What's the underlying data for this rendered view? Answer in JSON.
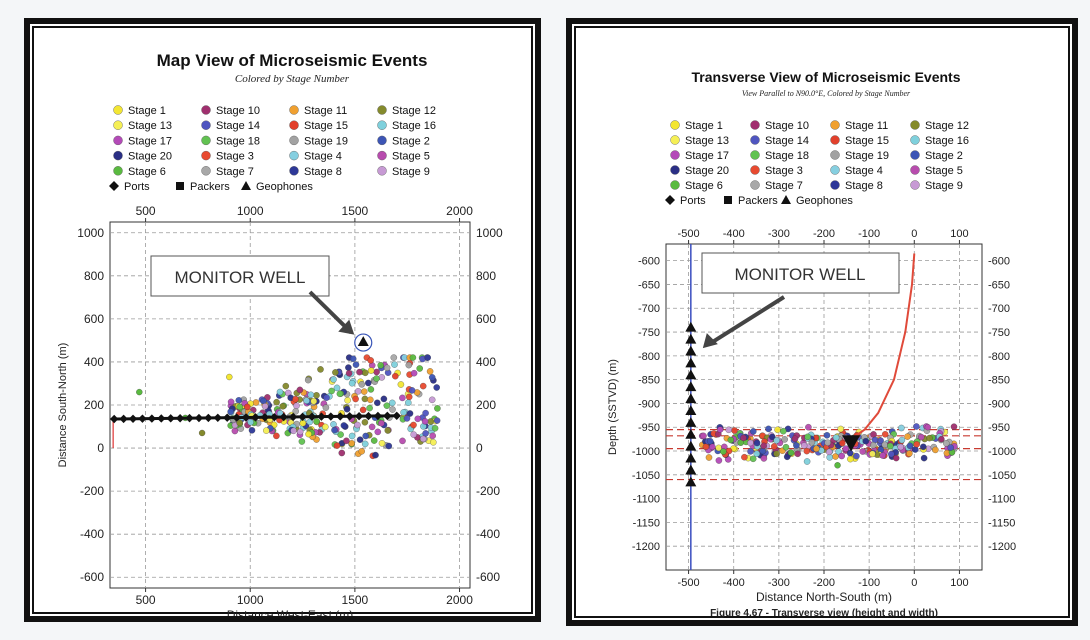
{
  "chart_data": [
    {
      "type": "scatter",
      "title": "Map View of Microseismic Events",
      "subtitle": "Colored by Stage Number",
      "xlabel": "Distance West-East (m)",
      "ylabel": "Distance South-North (m)",
      "xlim": [
        330,
        2050
      ],
      "ylim": [
        -650,
        1050
      ],
      "xticks": [
        500,
        1000,
        1500,
        2000
      ],
      "yticks": [
        1000,
        800,
        600,
        400,
        200,
        0,
        -200,
        -400,
        -600
      ],
      "grid": true,
      "legend_position": "top",
      "legend": [
        {
          "label": "Stage 1",
          "color": "#f3e633"
        },
        {
          "label": "Stage 10",
          "color": "#a0306f"
        },
        {
          "label": "Stage 11",
          "color": "#f0a030"
        },
        {
          "label": "Stage 12",
          "color": "#848a2c"
        },
        {
          "label": "Stage 13",
          "color": "#f5ef55"
        },
        {
          "label": "Stage 14",
          "color": "#4f55c0"
        },
        {
          "label": "Stage 15",
          "color": "#e2402c"
        },
        {
          "label": "Stage 16",
          "color": "#7fd0dc"
        },
        {
          "label": "Stage 17",
          "color": "#b44ab8"
        },
        {
          "label": "Stage 18",
          "color": "#62c252"
        },
        {
          "label": "Stage 19",
          "color": "#a2a2a2"
        },
        {
          "label": "Stage 2",
          "color": "#3d55b5"
        },
        {
          "label": "Stage 20",
          "color": "#2a2f85"
        },
        {
          "label": "Stage 3",
          "color": "#e84a30"
        },
        {
          "label": "Stage 4",
          "color": "#86cfe0"
        },
        {
          "label": "Stage 5",
          "color": "#b84cae"
        },
        {
          "label": "Stage 6",
          "color": "#5aba40"
        },
        {
          "label": "Stage 7",
          "color": "#a8a8a8"
        },
        {
          "label": "Stage 8",
          "color": "#2e3898"
        },
        {
          "label": "Stage 9",
          "color": "#c79ad4"
        }
      ],
      "symbols": [
        {
          "label": "Ports",
          "marker": "diamond"
        },
        {
          "label": "Packers",
          "marker": "square"
        },
        {
          "label": "Geophones",
          "marker": "triangle"
        }
      ],
      "annotation": "MONITOR WELL",
      "geophone": {
        "x": 1540,
        "y": 490
      },
      "event_cloud": {
        "x_range": [
          900,
          1900
        ],
        "y_range": [
          -80,
          420
        ],
        "count": 340
      },
      "wellbore": {
        "x_range": [
          350,
          1700
        ],
        "y": 135
      }
    },
    {
      "type": "scatter",
      "title": "Transverse View of Microseismic Events",
      "subtitle": "View Parallel to N90.0°E, Colored by Stage Number",
      "xlabel": "Distance North-South (m)",
      "ylabel": "Depth (SSTVD) (m)",
      "caption": "Figure 4.67 - Transverse view (height and width)",
      "xlim": [
        -550,
        150
      ],
      "ylim": [
        -1250,
        -565
      ],
      "xticks": [
        -500,
        -400,
        -300,
        -200,
        -100,
        0,
        100
      ],
      "yticks": [
        -600,
        -650,
        -700,
        -750,
        -800,
        -850,
        -900,
        -950,
        -1000,
        -1050,
        -1100,
        -1150,
        -1200
      ],
      "grid": true,
      "legend_position": "top",
      "legend": [
        {
          "label": "Stage 1",
          "color": "#f3e633"
        },
        {
          "label": "Stage 10",
          "color": "#a0306f"
        },
        {
          "label": "Stage 11",
          "color": "#f0a030"
        },
        {
          "label": "Stage 12",
          "color": "#848a2c"
        },
        {
          "label": "Stage 13",
          "color": "#f5ef55"
        },
        {
          "label": "Stage 14",
          "color": "#4f55c0"
        },
        {
          "label": "Stage 15",
          "color": "#e2402c"
        },
        {
          "label": "Stage 16",
          "color": "#7fd0dc"
        },
        {
          "label": "Stage 17",
          "color": "#b44ab8"
        },
        {
          "label": "Stage 18",
          "color": "#62c252"
        },
        {
          "label": "Stage 19",
          "color": "#a2a2a2"
        },
        {
          "label": "Stage 2",
          "color": "#3d55b5"
        },
        {
          "label": "Stage 20",
          "color": "#2a2f85"
        },
        {
          "label": "Stage 3",
          "color": "#e84a30"
        },
        {
          "label": "Stage 4",
          "color": "#86cfe0"
        },
        {
          "label": "Stage 5",
          "color": "#b84cae"
        },
        {
          "label": "Stage 6",
          "color": "#5aba40"
        },
        {
          "label": "Stage 7",
          "color": "#a8a8a8"
        },
        {
          "label": "Stage 8",
          "color": "#2e3898"
        },
        {
          "label": "Stage 9",
          "color": "#c79ad4"
        }
      ],
      "symbols": [
        {
          "label": "Ports",
          "marker": "diamond"
        },
        {
          "label": "Packers",
          "marker": "square"
        },
        {
          "label": "Geophones",
          "marker": "triangle"
        }
      ],
      "annotation": "MONITOR WELL",
      "monitor_well_x": -495,
      "geophone_depths": [
        -740,
        -765,
        -790,
        -815,
        -840,
        -865,
        -890,
        -915,
        -940,
        -965,
        -990,
        -1015,
        -1040,
        -1065
      ],
      "formation_tops": [
        -955,
        -968,
        -995,
        -1060
      ],
      "event_cloud": {
        "x_range": [
          -470,
          90
        ],
        "y_range": [
          -1020,
          -940
        ],
        "count": 300
      },
      "wellbore_curve": [
        [
          0,
          -585
        ],
        [
          -5,
          -650
        ],
        [
          -20,
          -750
        ],
        [
          -45,
          -850
        ],
        [
          -80,
          -920
        ],
        [
          -110,
          -955
        ],
        [
          -140,
          -975
        ]
      ]
    }
  ]
}
